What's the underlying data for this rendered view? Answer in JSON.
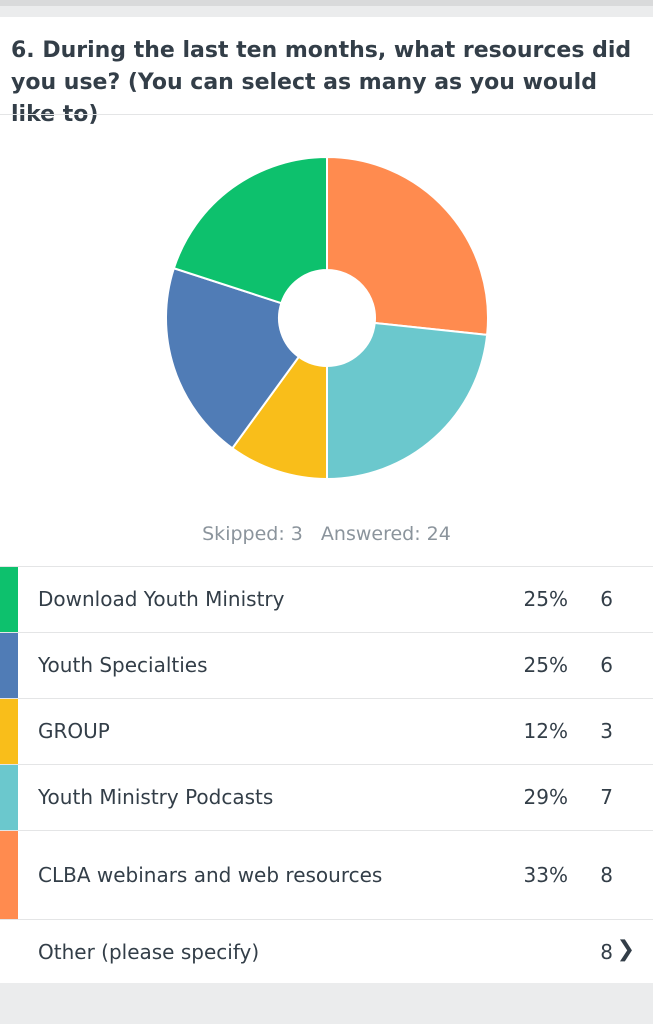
{
  "question": {
    "title": "6. During the last ten months, what resources did you use? (You can select as many as you would like to)"
  },
  "stats": {
    "skipped": "Skipped: 3",
    "answered": "Answered: 24"
  },
  "chart_data": {
    "type": "pie",
    "donut": true,
    "categories": [
      "CLBA webinars and web resources",
      "Youth Ministry Podcasts",
      "GROUP",
      "Youth Specialties",
      "Download Youth Ministry"
    ],
    "values": [
      8,
      7,
      3,
      6,
      6
    ],
    "colors": [
      "#ff8b4f",
      "#6bc8cd",
      "#f9be1a",
      "#507cb6",
      "#0dc16d"
    ],
    "start": "top, clockwise"
  },
  "rows": [
    {
      "label": "Download Youth Ministry",
      "percent": "25%",
      "count": "6",
      "color": "#0dc16d"
    },
    {
      "label": "Youth Specialties",
      "percent": "25%",
      "count": "6",
      "color": "#507cb6"
    },
    {
      "label": "GROUP",
      "percent": "12%",
      "count": "3",
      "color": "#f9be1a"
    },
    {
      "label": "Youth Ministry Podcasts",
      "percent": "29%",
      "count": "7",
      "color": "#6bc8cd"
    },
    {
      "label": "CLBA webinars and web resources",
      "percent": "33%",
      "count": "8",
      "color": "#ff8b4f"
    }
  ],
  "other": {
    "label": "Other (please specify)",
    "count": "8",
    "chevron_icon": "chevron-right-icon"
  }
}
